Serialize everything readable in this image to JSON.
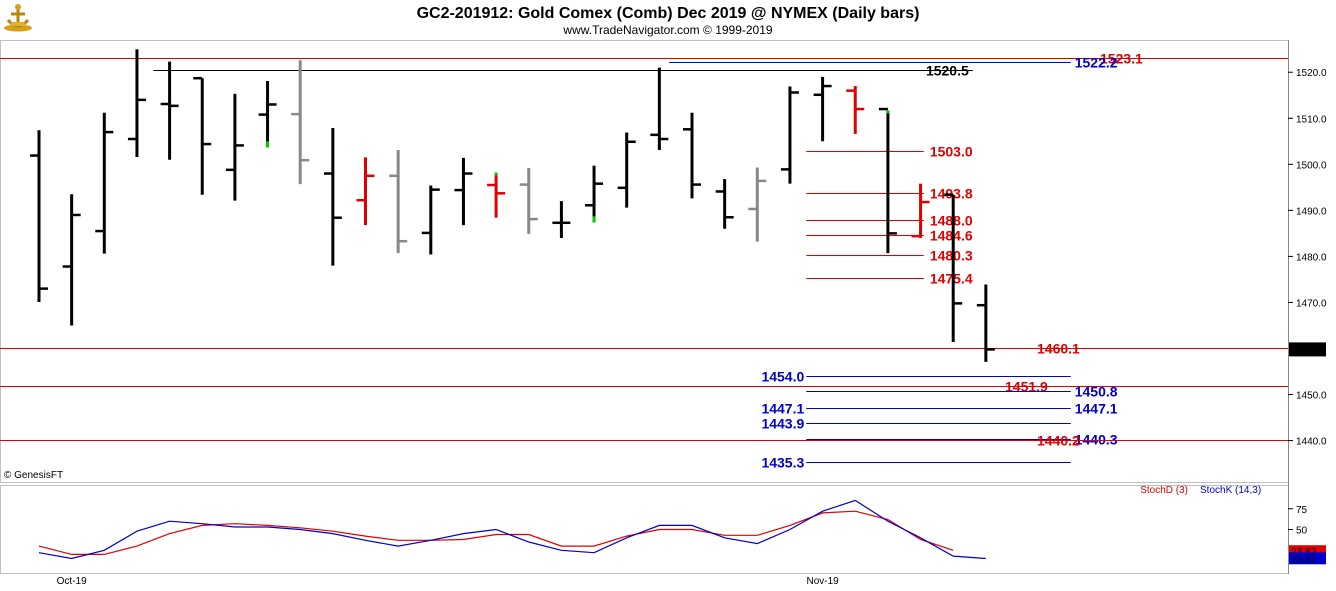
{
  "header": {
    "title": "GC2-201912:  Gold Comex (Comb) Dec 2019 @ NYMEX  (Daily bars)",
    "subtitle": "www.TradeNavigator.com © 1999-2019",
    "logo_icon": "genesis-anchor-logo-icon"
  },
  "watermark": "© GenesisFT",
  "colors": {
    "up": "#000000",
    "down": "#e00000",
    "neutral": "#888888",
    "green_tick": "#00cc00",
    "red_level": "#e00000",
    "blue_level": "#0000cc",
    "stochD": "#e00000",
    "stochK": "#0000cc"
  },
  "chart_data": [
    {
      "type": "ohlc",
      "title": "GC2-201912:  Gold Comex (Comb) Dec 2019 @ NYMEX  (Daily bars)",
      "ylim": [
        1431,
        1527
      ],
      "y_ticks": [
        "1520.0",
        "1510.0",
        "1500.0",
        "1490.0",
        "1480.0",
        "1470.0",
        "1450.0",
        "1440.0"
      ],
      "x_labels": [
        {
          "index": 1,
          "label": "Oct-19"
        },
        {
          "index": 24,
          "label": "Nov-19"
        }
      ],
      "last_price": "1459.8",
      "bars": [
        {
          "h": 1507.4,
          "l": 1470.1,
          "o": 1501.9,
          "c": 1473.0,
          "color": "up"
        },
        {
          "h": 1493.5,
          "l": 1465.0,
          "o": 1477.8,
          "c": 1489.0,
          "color": "up"
        },
        {
          "h": 1511.2,
          "l": 1480.6,
          "o": 1485.5,
          "c": 1507.0,
          "color": "up"
        },
        {
          "h": 1525.0,
          "l": 1501.6,
          "o": 1505.5,
          "c": 1514.0,
          "color": "up"
        },
        {
          "h": 1522.3,
          "l": 1501.0,
          "o": 1513.1,
          "c": 1512.7,
          "color": "up"
        },
        {
          "h": 1518.7,
          "l": 1493.4,
          "o": 1518.7,
          "c": 1504.4,
          "color": "up"
        },
        {
          "h": 1515.3,
          "l": 1492.1,
          "o": 1498.8,
          "c": 1504.1,
          "color": "up"
        },
        {
          "h": 1518.1,
          "l": 1503.7,
          "o": 1510.8,
          "c": 1513.0,
          "color": "up",
          "low_tick": "green"
        },
        {
          "h": 1522.6,
          "l": 1495.7,
          "o": 1510.9,
          "c": 1500.9,
          "color": "neutral"
        },
        {
          "h": 1507.9,
          "l": 1478.0,
          "o": 1498.0,
          "c": 1488.4,
          "color": "up"
        },
        {
          "h": 1501.5,
          "l": 1486.8,
          "o": 1492.2,
          "c": 1497.5,
          "color": "down"
        },
        {
          "h": 1503.1,
          "l": 1480.7,
          "o": 1497.5,
          "c": 1483.3,
          "color": "neutral"
        },
        {
          "h": 1495.4,
          "l": 1480.4,
          "o": 1485.1,
          "c": 1494.5,
          "color": "up"
        },
        {
          "h": 1501.4,
          "l": 1486.8,
          "o": 1494.4,
          "c": 1498.0,
          "color": "up"
        },
        {
          "h": 1498.2,
          "l": 1488.4,
          "o": 1495.5,
          "c": 1493.7,
          "color": "down",
          "high_tick": "green"
        },
        {
          "h": 1499.2,
          "l": 1484.9,
          "o": 1495.6,
          "c": 1488.1,
          "color": "neutral"
        },
        {
          "h": 1492.0,
          "l": 1484.0,
          "o": 1487.3,
          "c": 1487.3,
          "color": "up"
        },
        {
          "h": 1499.7,
          "l": 1487.4,
          "o": 1491.1,
          "c": 1495.8,
          "color": "up",
          "low_tick": "green"
        },
        {
          "h": 1506.9,
          "l": 1490.6,
          "o": 1494.9,
          "c": 1504.9,
          "color": "up"
        },
        {
          "h": 1521.0,
          "l": 1503.1,
          "o": 1506.4,
          "c": 1505.5,
          "color": "up"
        },
        {
          "h": 1511.2,
          "l": 1492.6,
          "o": 1507.6,
          "c": 1495.6,
          "color": "up"
        },
        {
          "h": 1496.8,
          "l": 1486.0,
          "o": 1494.1,
          "c": 1488.5,
          "color": "up"
        },
        {
          "h": 1499.3,
          "l": 1483.2,
          "o": 1490.3,
          "c": 1496.4,
          "color": "neutral"
        },
        {
          "h": 1516.9,
          "l": 1495.8,
          "o": 1498.9,
          "c": 1515.6,
          "color": "up"
        },
        {
          "h": 1519.0,
          "l": 1505.0,
          "o": 1515.1,
          "c": 1517.0,
          "color": "up"
        },
        {
          "h": 1517.0,
          "l": 1506.6,
          "o": 1516.0,
          "c": 1512.0,
          "color": "down"
        },
        {
          "h": 1511.7,
          "l": 1480.7,
          "o": 1512.0,
          "c": 1485.0,
          "color": "up",
          "high_tick": "green"
        },
        {
          "h": 1495.8,
          "l": 1484.0,
          "o": 1484.4,
          "c": 1491.8,
          "color": "down"
        },
        {
          "h": 1493.4,
          "l": 1461.4,
          "o": 1493.4,
          "c": 1469.8,
          "color": "up"
        },
        {
          "h": 1473.9,
          "l": 1457.1,
          "o": 1469.4,
          "c": 1459.8,
          "color": "up"
        }
      ],
      "levels": [
        {
          "label": "1523.1",
          "price": 1523.1,
          "color": "red",
          "x_start": 0.0,
          "x_end": 1.0
        },
        {
          "label": "1522.2",
          "price": 1522.2,
          "color": "blue",
          "x_start": 19.3,
          "x_end": 31.6
        },
        {
          "label": "1520.5",
          "price": 1520.5,
          "color": "black",
          "x_start": 3.5,
          "x_end": 28.6
        },
        {
          "label": "1503.0",
          "price": 1503.0,
          "color": "red",
          "x_start": 23.5,
          "x_end": 27.1
        },
        {
          "label": "1493.8",
          "price": 1493.8,
          "color": "red",
          "x_start": 23.5,
          "x_end": 27.1
        },
        {
          "label": "1488.0",
          "price": 1488.0,
          "color": "red",
          "x_start": 23.5,
          "x_end": 27.1
        },
        {
          "label": "1484.6",
          "price": 1484.6,
          "color": "red",
          "x_start": 23.5,
          "x_end": 27.1
        },
        {
          "label": "1480.3",
          "price": 1480.3,
          "color": "red",
          "x_start": 23.5,
          "x_end": 27.1
        },
        {
          "label": "1475.4",
          "price": 1475.4,
          "color": "red",
          "x_start": 23.5,
          "x_end": 27.1
        },
        {
          "label": "1460.1",
          "price": 1460.1,
          "color": "red",
          "x_start": 0.0,
          "x_end": 1.0
        },
        {
          "label": "1454.0",
          "price": 1454.0,
          "color": "blue",
          "x_start": 23.5,
          "x_end": 31.6
        },
        {
          "label": "1451.9",
          "price": 1451.9,
          "color": "red",
          "x_start": 0.0,
          "x_end": 1.0
        },
        {
          "label": "1450.8",
          "price": 1450.8,
          "color": "blue",
          "x_start": 23.5,
          "x_end": 31.6
        },
        {
          "label": "1447.1",
          "price": 1447.1,
          "color": "blue",
          "x_start": 23.5,
          "x_end": 31.6
        },
        {
          "label": "1443.9",
          "price": 1443.9,
          "color": "blue",
          "x_start": 23.5,
          "x_end": 31.6
        },
        {
          "label": "1440.3",
          "price": 1440.3,
          "color": "blue",
          "x_start": 23.5,
          "x_end": 31.6
        },
        {
          "label": "1440.2",
          "price": 1440.2,
          "color": "red",
          "x_start": 0.0,
          "x_end": 1.0
        },
        {
          "label": "1435.3",
          "price": 1435.3,
          "color": "blue",
          "x_start": 23.5,
          "x_end": 31.6
        }
      ]
    },
    {
      "type": "line",
      "title": "",
      "ylim": [
        0,
        100
      ],
      "y_ticks": [
        "75",
        "50"
      ],
      "series": [
        {
          "name": "StochD (3)",
          "color": "red",
          "last": "23.82",
          "values": [
            30,
            20,
            20,
            30,
            45,
            55,
            57,
            55,
            52,
            48,
            42,
            37,
            37,
            38,
            44,
            44,
            30,
            30,
            42,
            50,
            50,
            43,
            43,
            55,
            70,
            72,
            62,
            38,
            25
          ]
        },
        {
          "name": "StochK (14,3)",
          "color": "blue",
          "last": "15.31",
          "values": [
            22,
            15,
            25,
            48,
            60,
            57,
            53,
            53,
            50,
            45,
            37,
            30,
            37,
            45,
            50,
            35,
            25,
            22,
            40,
            55,
            55,
            40,
            33,
            50,
            72,
            85,
            60,
            40,
            18,
            15
          ]
        }
      ]
    }
  ]
}
